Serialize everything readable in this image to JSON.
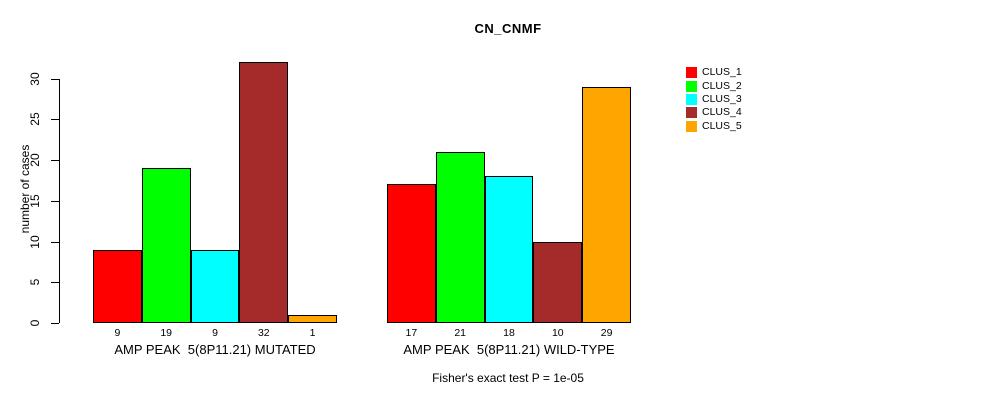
{
  "chart_data": {
    "type": "bar",
    "title": "CN_CNMF",
    "ylabel": "number of cases",
    "ylim": [
      0,
      30
    ],
    "yticks": [
      0,
      5,
      10,
      15,
      20,
      25,
      30
    ],
    "legend": [
      "CLUS_1",
      "CLUS_2",
      "CLUS_3",
      "CLUS_4",
      "CLUS_5"
    ],
    "colors": [
      "#ff0000",
      "#00ff00",
      "#00ffff",
      "#a52a2a",
      "#ffa500"
    ],
    "grid": false,
    "legend_position": "right",
    "groups": [
      {
        "label": "AMP PEAK  5(8P11.21) MUTATED",
        "values": [
          9,
          19,
          9,
          32,
          1
        ]
      },
      {
        "label": "AMP PEAK  5(8P11.21) WILD-TYPE",
        "values": [
          17,
          21,
          18,
          10,
          29
        ]
      }
    ],
    "footnote": "Fisher's exact test P = 1e-05"
  }
}
